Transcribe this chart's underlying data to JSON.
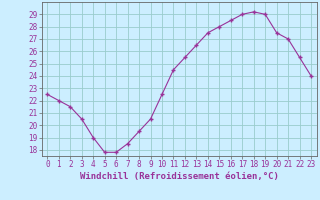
{
  "x": [
    0,
    1,
    2,
    3,
    4,
    5,
    6,
    7,
    8,
    9,
    10,
    11,
    12,
    13,
    14,
    15,
    16,
    17,
    18,
    19,
    20,
    21,
    22,
    23
  ],
  "y": [
    22.5,
    22.0,
    21.5,
    20.5,
    19.0,
    17.8,
    17.8,
    18.5,
    19.5,
    20.5,
    22.5,
    24.5,
    25.5,
    26.5,
    27.5,
    28.0,
    28.5,
    29.0,
    29.2,
    29.0,
    27.5,
    27.0,
    25.5,
    24.0
  ],
  "line_color": "#993399",
  "marker": "+",
  "marker_size": 3,
  "bg_color": "#cceeff",
  "grid_color": "#99cccc",
  "xlabel": "Windchill (Refroidissement éolien,°C)",
  "ylim": [
    17.5,
    30.0
  ],
  "yticks": [
    18,
    19,
    20,
    21,
    22,
    23,
    24,
    25,
    26,
    27,
    28,
    29
  ],
  "xticks": [
    0,
    1,
    2,
    3,
    4,
    5,
    6,
    7,
    8,
    9,
    10,
    11,
    12,
    13,
    14,
    15,
    16,
    17,
    18,
    19,
    20,
    21,
    22,
    23
  ],
  "tick_fontsize": 5.5,
  "xlabel_fontsize": 6.5,
  "line_color_hex": "#993399",
  "spine_color": "#666666",
  "label_color": "#993399"
}
